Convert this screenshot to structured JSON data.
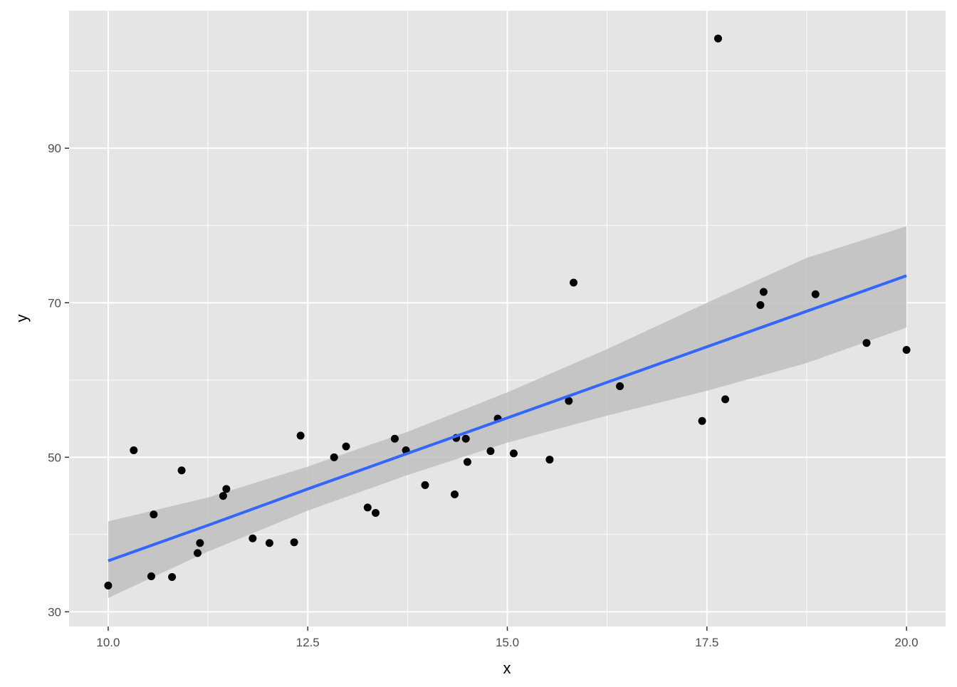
{
  "chart_data": {
    "type": "scatter",
    "title": "",
    "xlabel": "x",
    "ylabel": "y",
    "xlim": [
      9.51,
      20.49
    ],
    "ylim": [
      28.1,
      107.8
    ],
    "x_ticks": [
      10.0,
      12.5,
      15.0,
      17.5,
      20.0
    ],
    "x_tick_labels": [
      "10.0",
      "12.5",
      "15.0",
      "17.5",
      "20.0"
    ],
    "y_ticks": [
      30,
      50,
      70,
      90
    ],
    "y_tick_labels": [
      "30",
      "50",
      "70",
      "90"
    ],
    "grid": true,
    "colors": {
      "panel": "#e5e5e5",
      "grid": "#ffffff",
      "points": "#000000",
      "fit": "#3366ff",
      "band": "#bfbfbf"
    },
    "points": [
      [
        10.0,
        33.4
      ],
      [
        10.32,
        50.9
      ],
      [
        10.54,
        34.6
      ],
      [
        10.57,
        42.6
      ],
      [
        10.8,
        34.5
      ],
      [
        10.92,
        48.3
      ],
      [
        11.12,
        37.6
      ],
      [
        11.15,
        38.9
      ],
      [
        11.44,
        45.0
      ],
      [
        11.48,
        45.9
      ],
      [
        11.81,
        39.5
      ],
      [
        12.02,
        38.9
      ],
      [
        12.33,
        39.0
      ],
      [
        12.41,
        52.8
      ],
      [
        12.83,
        50.0
      ],
      [
        12.98,
        51.4
      ],
      [
        13.25,
        43.5
      ],
      [
        13.35,
        42.8
      ],
      [
        13.59,
        52.4
      ],
      [
        13.73,
        50.9
      ],
      [
        13.97,
        46.4
      ],
      [
        14.34,
        45.2
      ],
      [
        14.36,
        52.5
      ],
      [
        14.48,
        52.4
      ],
      [
        14.5,
        49.4
      ],
      [
        14.79,
        50.8
      ],
      [
        14.88,
        55.0
      ],
      [
        15.08,
        50.5
      ],
      [
        15.53,
        49.7
      ],
      [
        15.77,
        57.3
      ],
      [
        15.83,
        72.6
      ],
      [
        16.41,
        59.2
      ],
      [
        17.44,
        54.7
      ],
      [
        17.64,
        104.2
      ],
      [
        17.73,
        57.5
      ],
      [
        18.17,
        69.7
      ],
      [
        18.21,
        71.4
      ],
      [
        18.86,
        71.1
      ],
      [
        19.5,
        64.8
      ],
      [
        20.0,
        63.9
      ]
    ],
    "smooth": {
      "method": "lm",
      "x": [
        10.0,
        11.25,
        12.5,
        13.75,
        15.0,
        16.25,
        17.5,
        18.75,
        20.0
      ],
      "fit": [
        36.6,
        41.2,
        45.9,
        50.5,
        55.1,
        59.7,
        64.3,
        68.9,
        73.5
      ],
      "lower": [
        31.8,
        37.8,
        43.1,
        47.7,
        51.9,
        55.4,
        58.6,
        62.2,
        66.8
      ],
      "upper": [
        41.7,
        44.8,
        48.8,
        53.3,
        58.4,
        64.0,
        70.0,
        75.8,
        79.9
      ]
    }
  }
}
